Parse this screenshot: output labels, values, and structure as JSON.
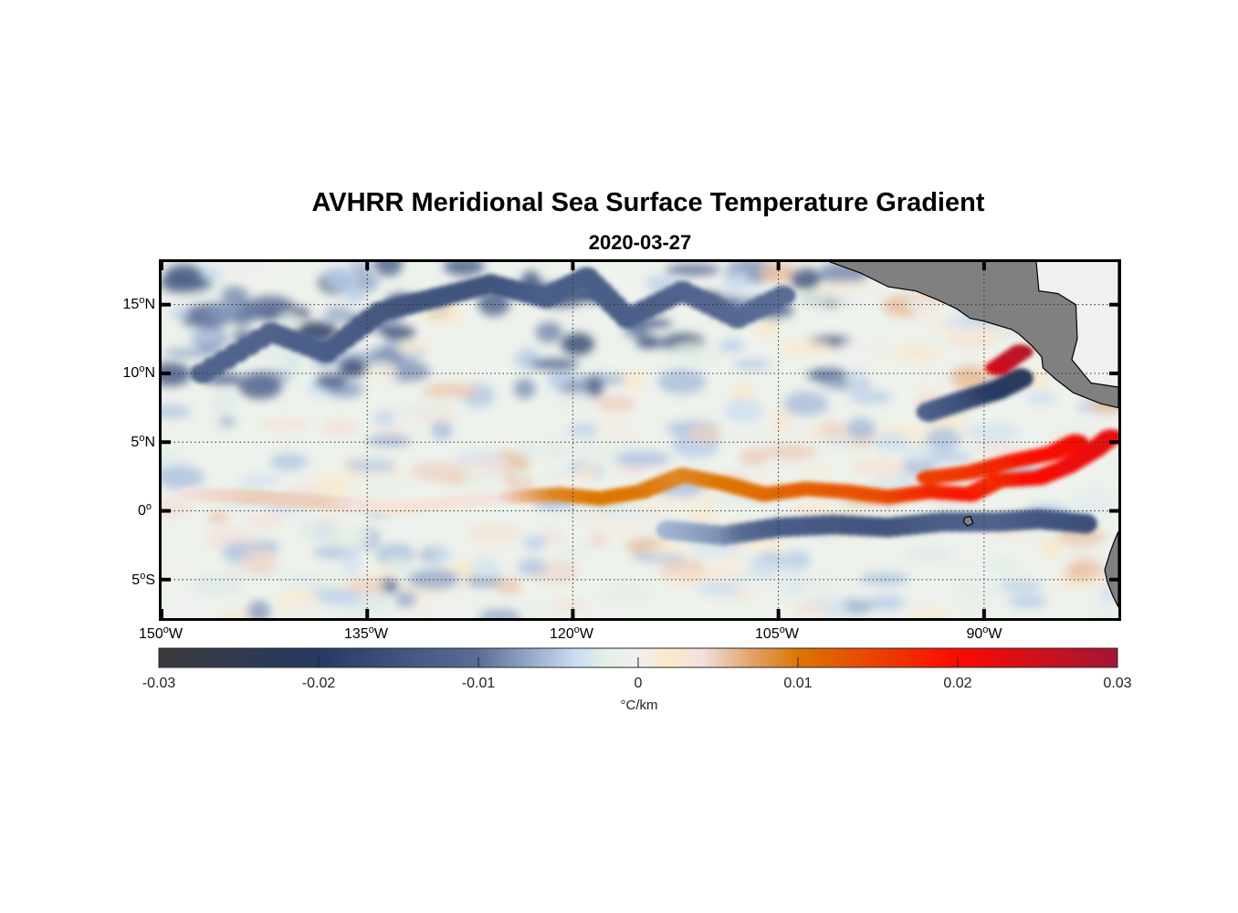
{
  "title": "AVHRR Meridional Sea Surface Temperature Gradient",
  "subtitle": "2020-03-27",
  "map": {
    "lon_range": [
      -150,
      -80.2
    ],
    "lat_range": [
      -7.8,
      18.1
    ],
    "land_color": "#808080",
    "lat_ticks": [
      {
        "value": 15,
        "num": "15",
        "hemi": "N"
      },
      {
        "value": 10,
        "num": "10",
        "hemi": "N"
      },
      {
        "value": 5,
        "num": "5",
        "hemi": "N"
      },
      {
        "value": 0,
        "num": "0",
        "hemi": ""
      },
      {
        "value": -5,
        "num": "5",
        "hemi": "S"
      }
    ],
    "lon_ticks": [
      {
        "value": -150,
        "num": "150",
        "hemi": "W"
      },
      {
        "value": -135,
        "num": "135",
        "hemi": "W"
      },
      {
        "value": -120,
        "num": "120",
        "hemi": "W"
      },
      {
        "value": -105,
        "num": "105",
        "hemi": "W"
      },
      {
        "value": -90,
        "num": "90",
        "hemi": "W"
      }
    ],
    "degree_symbol": "o"
  },
  "colorbar": {
    "range": [
      -0.03,
      0.03
    ],
    "ticks": [
      {
        "value": -0.03,
        "label": "-0.03"
      },
      {
        "value": -0.02,
        "label": "-0.02"
      },
      {
        "value": -0.01,
        "label": "-0.01"
      },
      {
        "value": 0,
        "label": "0"
      },
      {
        "value": 0.01,
        "label": "0.01"
      },
      {
        "value": 0.02,
        "label": "0.02"
      },
      {
        "value": 0.03,
        "label": "0.03"
      }
    ],
    "unit": "°C/km",
    "stops": [
      {
        "value": -0.03,
        "color": "#3a3a3c"
      },
      {
        "value": -0.02,
        "color": "#263a64"
      },
      {
        "value": -0.01,
        "color": "#5a6d96"
      },
      {
        "value": -0.004,
        "color": "#c8dcf3"
      },
      {
        "value": -0.002,
        "color": "#e5efe6"
      },
      {
        "value": 0,
        "color": "#f0f0ef"
      },
      {
        "value": 0.002,
        "color": "#fbe9c8"
      },
      {
        "value": 0.004,
        "color": "#f1e1df"
      },
      {
        "value": 0.007,
        "color": "#e2a56c"
      },
      {
        "value": 0.01,
        "color": "#dc7602"
      },
      {
        "value": 0.02,
        "color": "#fb0a02"
      },
      {
        "value": 0.03,
        "color": "#a31635"
      }
    ]
  },
  "features": [
    {
      "name": "equatorial-warm-front",
      "sign": "positive",
      "points": [
        [
          -148,
          1.2,
          0.004
        ],
        [
          -143,
          1.0,
          0.005
        ],
        [
          -138,
          0.6,
          0.005
        ],
        [
          -133,
          0.2,
          0.003
        ],
        [
          -125,
          1.0,
          0.004
        ],
        [
          -121,
          1.2,
          0.009
        ],
        [
          -118,
          0.9,
          0.01
        ],
        [
          -115,
          1.4,
          0.01
        ],
        [
          -112,
          2.6,
          0.009
        ],
        [
          -109,
          2.0,
          0.01
        ],
        [
          -106,
          1.2,
          0.011
        ],
        [
          -103,
          1.6,
          0.012
        ],
        [
          -100,
          1.4,
          0.013
        ],
        [
          -97,
          1.0,
          0.014
        ],
        [
          -94,
          1.4,
          0.017
        ],
        [
          -91,
          1.2,
          0.019
        ],
        [
          -89,
          2.2,
          0.017
        ],
        [
          -86,
          2.4,
          0.02
        ],
        [
          -84,
          3.2,
          0.021
        ],
        [
          -82,
          4.4,
          0.022
        ],
        [
          -80.5,
          5.6,
          0.022
        ]
      ]
    },
    {
      "name": "north-warm-branch",
      "sign": "positive",
      "points": [
        [
          -94,
          2.4,
          0.015
        ],
        [
          -91,
          2.8,
          0.016
        ],
        [
          -88,
          3.6,
          0.018
        ],
        [
          -85,
          4.2,
          0.02
        ],
        [
          -83,
          5.2,
          0.021
        ]
      ]
    },
    {
      "name": "south-cold-band",
      "sign": "negative",
      "points": [
        [
          -113,
          -1.4,
          -0.006
        ],
        [
          -109,
          -1.8,
          -0.008
        ],
        [
          -105,
          -1.2,
          -0.013
        ],
        [
          -101,
          -1.0,
          -0.014
        ],
        [
          -97,
          -1.2,
          -0.015
        ],
        [
          -93,
          -0.8,
          -0.013
        ],
        [
          -89,
          -0.8,
          -0.012
        ],
        [
          -86,
          -0.6,
          -0.014
        ],
        [
          -82,
          -1.0,
          -0.016
        ]
      ]
    },
    {
      "name": "tehuantepec-cold",
      "sign": "negative",
      "points": [
        [
          -94,
          7.2,
          -0.012
        ],
        [
          -91,
          8.2,
          -0.016
        ],
        [
          -89,
          8.8,
          -0.02
        ],
        [
          -87,
          9.8,
          -0.022
        ]
      ]
    },
    {
      "name": "papagayo-warm",
      "sign": "positive",
      "points": [
        [
          -89,
          10.4,
          0.024
        ],
        [
          -87,
          11.8,
          0.028
        ]
      ]
    },
    {
      "name": "north-cold-patches",
      "sign": "negative",
      "points": [
        [
          -147,
          10.0,
          -0.012
        ],
        [
          -142,
          13.0,
          -0.012
        ],
        [
          -138,
          11.5,
          -0.013
        ],
        [
          -134,
          14.5,
          -0.014
        ],
        [
          -130,
          15.5,
          -0.015
        ],
        [
          -126,
          16.5,
          -0.015
        ],
        [
          -122,
          15.5,
          -0.013
        ],
        [
          -119,
          17.0,
          -0.013
        ],
        [
          -116,
          14.0,
          -0.013
        ],
        [
          -112,
          16.0,
          -0.012
        ],
        [
          -108,
          14.0,
          -0.011
        ],
        [
          -104,
          16.0,
          -0.01
        ]
      ]
    }
  ]
}
